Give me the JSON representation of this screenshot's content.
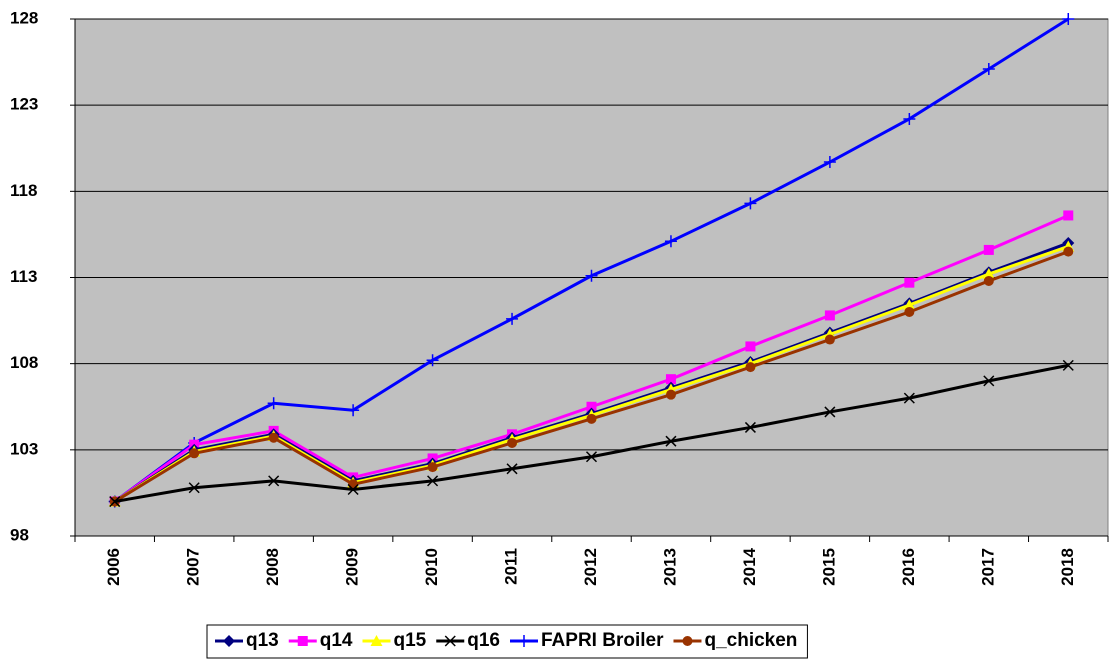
{
  "chart_data": {
    "type": "line",
    "categories": [
      "2006",
      "2007",
      "2008",
      "2009",
      "2010",
      "2011",
      "2012",
      "2013",
      "2014",
      "2015",
      "2016",
      "2017",
      "2018"
    ],
    "ylim": [
      98,
      128
    ],
    "yticks": [
      98,
      103,
      108,
      113,
      118,
      123,
      128
    ],
    "grid": true,
    "legend": "bottom",
    "series": [
      {
        "name": "q13",
        "color": "#000080",
        "marker": "diamond",
        "values": [
          100,
          103.0,
          103.9,
          101.2,
          102.2,
          103.7,
          105.1,
          106.6,
          108.1,
          109.8,
          111.5,
          113.3,
          115.0
        ]
      },
      {
        "name": "q14",
        "color": "#ff00ff",
        "marker": "square",
        "values": [
          100,
          103.3,
          104.1,
          101.4,
          102.5,
          103.9,
          105.5,
          107.1,
          109.0,
          110.8,
          112.7,
          114.6,
          116.6
        ]
      },
      {
        "name": "q15",
        "color": "#ffff00",
        "marker": "triangle",
        "values": [
          100,
          102.9,
          103.8,
          101.1,
          102.1,
          103.6,
          105.0,
          106.5,
          108.0,
          109.7,
          111.4,
          113.2,
          114.8
        ]
      },
      {
        "name": "q16",
        "color": "#000000",
        "marker": "x",
        "values": [
          100,
          100.8,
          101.2,
          100.7,
          101.2,
          101.9,
          102.6,
          103.5,
          104.3,
          105.2,
          106.0,
          107.0,
          107.9
        ]
      },
      {
        "name": "FAPRI Broiler",
        "color": "#0000ff",
        "marker": "plus",
        "values": [
          100,
          103.4,
          105.7,
          105.3,
          108.2,
          110.6,
          113.1,
          115.1,
          117.3,
          119.7,
          122.2,
          125.1,
          128
        ]
      },
      {
        "name": "q_chicken",
        "color": "#993300",
        "marker": "circle",
        "values": [
          100,
          102.8,
          103.7,
          101.0,
          102.0,
          103.4,
          104.8,
          106.2,
          107.8,
          109.4,
          111.0,
          112.8,
          114.5
        ]
      }
    ]
  }
}
